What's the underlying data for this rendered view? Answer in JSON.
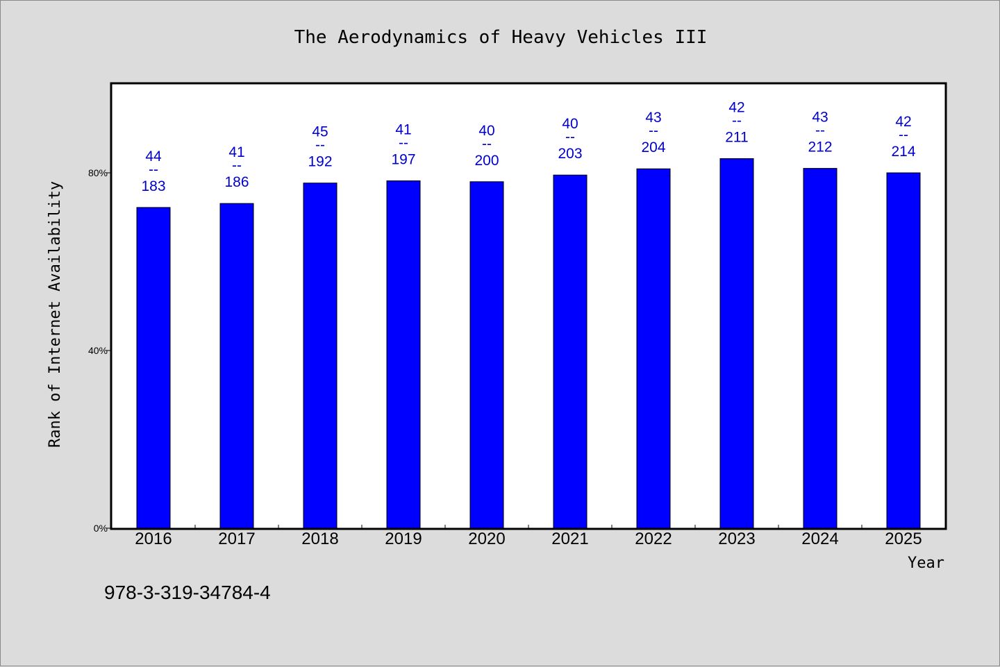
{
  "colors": {
    "bar": "#0000ff",
    "bar_outline": "#000000",
    "data_label": "#0000cc",
    "background": "#dcdcdc",
    "plot_background": "#ffffff"
  },
  "footer": {
    "isbn": "978-3-319-34784-4"
  },
  "chart_data": {
    "type": "bar",
    "title": "The Aerodynamics of Heavy Vehicles III",
    "xlabel": "Year",
    "ylabel": "Rank of Internet Availability",
    "ylim": [
      0,
      100
    ],
    "yticks": [
      {
        "value": 0,
        "label": "0%"
      },
      {
        "value": 40,
        "label": "40%"
      },
      {
        "value": 80,
        "label": "80%"
      }
    ],
    "grid": false,
    "categories": [
      "2016",
      "2017",
      "2018",
      "2019",
      "2020",
      "2021",
      "2022",
      "2023",
      "2024",
      "2025"
    ],
    "values": [
      72.2,
      73.1,
      77.7,
      78.2,
      78.0,
      79.5,
      80.9,
      83.2,
      81.0,
      80.0
    ],
    "label_numerators": [
      "44",
      "41",
      "45",
      "41",
      "40",
      "40",
      "43",
      "42",
      "43",
      "42"
    ],
    "label_separator": "--",
    "label_denominators": [
      "183",
      "186",
      "192",
      "197",
      "200",
      "203",
      "204",
      "211",
      "212",
      "214"
    ]
  }
}
